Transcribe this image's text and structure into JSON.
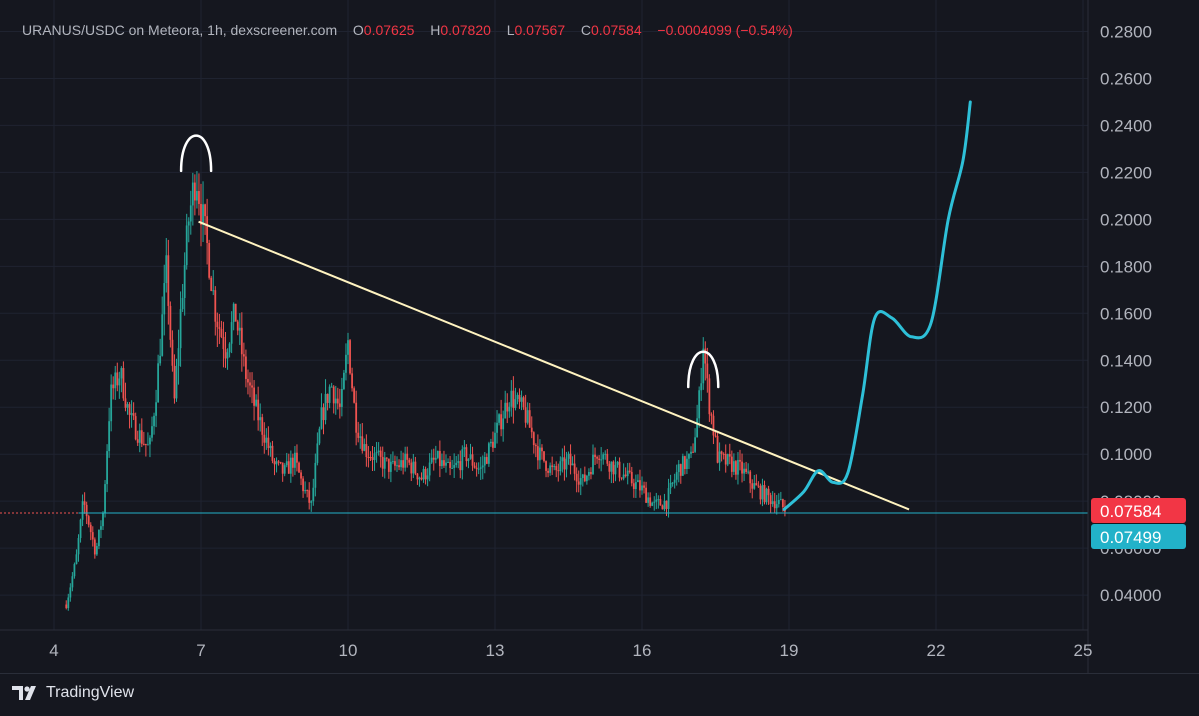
{
  "header": {
    "symbol": "URANUS/USDC on Meteora, 1h, dexscreener.com",
    "open_label": "O",
    "open": "0.07625",
    "high_label": "H",
    "high": "0.07820",
    "low_label": "L",
    "low": "0.07567",
    "close_label": "C",
    "close": "0.07584",
    "change": "−0.0004099 (−0.54%)"
  },
  "footer": {
    "brand": "TradingView"
  },
  "colors": {
    "background": "#15171f",
    "up": "#26a69a",
    "down": "#ef5350",
    "trendline": "#fff3c0",
    "projection": "#2ec0d8",
    "price_badge": "#f23645",
    "support_badge": "#22b2c9",
    "annotation": "#ffffff"
  },
  "chart_data": {
    "type": "candlestick",
    "title": "URANUS/USDC on Meteora, 1h, dexscreener.com",
    "x_ticks": [
      "4",
      "7",
      "10",
      "13",
      "16",
      "19",
      "22",
      "25"
    ],
    "x_range": [
      4,
      25
    ],
    "y_ticks": [
      "0.2800",
      "0.2600",
      "0.2400",
      "0.2200",
      "0.2000",
      "0.1800",
      "0.1600",
      "0.1400",
      "0.1200",
      "0.1000",
      "0.08000",
      "0.06000",
      "0.04000"
    ],
    "ylim": [
      0.026,
      0.29
    ],
    "last_price": "0.07584",
    "support_price": "0.07499",
    "price_path": [
      [
        4.25,
        0.036
      ],
      [
        4.45,
        0.055
      ],
      [
        4.6,
        0.08
      ],
      [
        4.72,
        0.07
      ],
      [
        4.85,
        0.058
      ],
      [
        5.0,
        0.075
      ],
      [
        5.15,
        0.125
      ],
      [
        5.35,
        0.135
      ],
      [
        5.55,
        0.115
      ],
      [
        5.75,
        0.108
      ],
      [
        5.95,
        0.102
      ],
      [
        6.1,
        0.13
      ],
      [
        6.3,
        0.18
      ],
      [
        6.45,
        0.12
      ],
      [
        6.6,
        0.165
      ],
      [
        6.75,
        0.2
      ],
      [
        6.9,
        0.22
      ],
      [
        7.0,
        0.205
      ],
      [
        7.15,
        0.185
      ],
      [
        7.3,
        0.16
      ],
      [
        7.5,
        0.145
      ],
      [
        7.7,
        0.16
      ],
      [
        7.9,
        0.135
      ],
      [
        8.1,
        0.12
      ],
      [
        8.3,
        0.108
      ],
      [
        8.5,
        0.095
      ],
      [
        8.7,
        0.092
      ],
      [
        8.9,
        0.098
      ],
      [
        9.1,
        0.085
      ],
      [
        9.25,
        0.078
      ],
      [
        9.45,
        0.115
      ],
      [
        9.65,
        0.13
      ],
      [
        9.85,
        0.118
      ],
      [
        10.0,
        0.148
      ],
      [
        10.15,
        0.115
      ],
      [
        10.35,
        0.102
      ],
      [
        10.6,
        0.098
      ],
      [
        10.9,
        0.094
      ],
      [
        11.2,
        0.097
      ],
      [
        11.5,
        0.09
      ],
      [
        11.8,
        0.098
      ],
      [
        12.1,
        0.092
      ],
      [
        12.4,
        0.1
      ],
      [
        12.7,
        0.093
      ],
      [
        13.0,
        0.108
      ],
      [
        13.3,
        0.125
      ],
      [
        13.6,
        0.118
      ],
      [
        13.9,
        0.1
      ],
      [
        14.2,
        0.092
      ],
      [
        14.5,
        0.097
      ],
      [
        14.8,
        0.088
      ],
      [
        15.1,
        0.102
      ],
      [
        15.4,
        0.095
      ],
      [
        15.7,
        0.09
      ],
      [
        16.0,
        0.085
      ],
      [
        16.25,
        0.078
      ],
      [
        16.5,
        0.08
      ],
      [
        16.75,
        0.094
      ],
      [
        17.0,
        0.098
      ],
      [
        17.15,
        0.118
      ],
      [
        17.25,
        0.148
      ],
      [
        17.35,
        0.125
      ],
      [
        17.55,
        0.098
      ],
      [
        17.8,
        0.096
      ],
      [
        18.05,
        0.093
      ],
      [
        18.3,
        0.086
      ],
      [
        18.55,
        0.082
      ],
      [
        18.8,
        0.079
      ],
      [
        18.95,
        0.0758
      ]
    ]
  },
  "annotations": {
    "trendline": [
      [
        6.95,
        0.199
      ],
      [
        21.45,
        0.0765
      ]
    ],
    "support_line": 0.07499,
    "projection_path": [
      [
        18.9,
        0.0765
      ],
      [
        19.3,
        0.084
      ],
      [
        19.6,
        0.093
      ],
      [
        19.9,
        0.088
      ],
      [
        20.2,
        0.092
      ],
      [
        20.5,
        0.125
      ],
      [
        20.75,
        0.158
      ],
      [
        21.1,
        0.158
      ],
      [
        21.5,
        0.15
      ],
      [
        21.9,
        0.156
      ],
      [
        22.25,
        0.2
      ],
      [
        22.55,
        0.225
      ],
      [
        22.7,
        0.25
      ]
    ],
    "arcs": [
      [
        6.9,
        0.23
      ],
      [
        17.25,
        0.138
      ]
    ]
  }
}
